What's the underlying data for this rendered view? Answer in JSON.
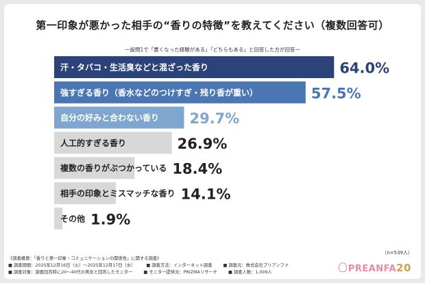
{
  "header": {
    "title": "第一印象が悪かった相手の“香りの特徴”を教えてください（複数回答可）",
    "subtitle": "ー設問1で「悪くなった経験がある」「どちらもある」と回答した方が回答ー"
  },
  "chart_data": {
    "type": "bar",
    "orientation": "horizontal",
    "title": "第一印象が悪かった相手の“香りの特徴”を教えてください（複数回答可）",
    "categories": [
      "汗・タバコ・生活臭などと混ざった香り",
      "強すぎる香り（香水などのつけすぎ・残り香が重い）",
      "自分の好みと合わない香り",
      "人工的すぎる香り",
      "複数の香りがぶつかっている",
      "相手の印象とミスマッチな香り",
      "その他"
    ],
    "values": [
      64.0,
      57.5,
      29.7,
      26.9,
      18.4,
      14.1,
      1.9
    ],
    "value_labels": [
      "64.0%",
      "57.5%",
      "29.7%",
      "26.9%",
      "18.4%",
      "14.1%",
      "1.9%"
    ],
    "unit": "%",
    "xlim": [
      0,
      100
    ],
    "grid": false,
    "legend": "none",
    "bar_colors": [
      "#2c4379",
      "#4a77b3",
      "#7fa6cf",
      "#d8d8d8",
      "#d8d8d8",
      "#d8d8d8",
      "#d8d8d8"
    ],
    "value_colors": [
      "#2c4379",
      "#4a77b3",
      "#7fa6cf",
      "#222222",
      "#222222",
      "#222222",
      "#222222"
    ],
    "label_colors": [
      "#ffffff",
      "#ffffff",
      "#ffffff",
      "#222222",
      "#222222",
      "#222222",
      "#222222"
    ],
    "sample_size": "（n=539人）"
  },
  "footer": {
    "heading": "《調査概要：「香りと第一印象・コミュニケーションの関係性」に関する調査》",
    "period": "■ 調査期間：2025年12月16日（火）～2025年12月17日（水）",
    "method": "■ 調査方法：インターネット調査",
    "organizer": "■ 調査元：株式会社プリアンファ",
    "target": "■ 調査対象：調査回答時に20～40代の男女と回答したモニター",
    "provider": "■ モニター提供元：PRIZMAリサーチ",
    "respondents": "■ 調査人数：1,009人"
  },
  "logo": {
    "text": "PREANFA",
    "number": "20"
  }
}
